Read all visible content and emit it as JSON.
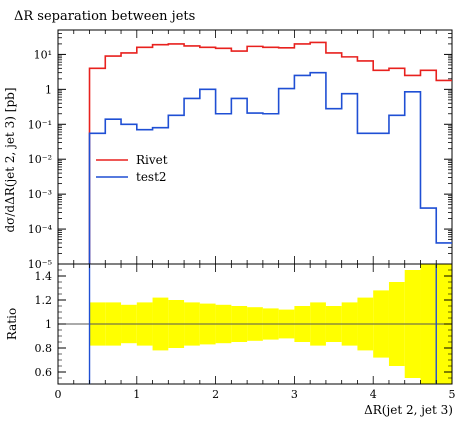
{
  "chart_data": [
    {
      "type": "line",
      "title": "ΔR separation between jets",
      "xlabel": "",
      "ylabel": "dσ/dΔR(jet 2, jet 3) [pb]",
      "yscale": "log",
      "xlim": [
        0,
        5
      ],
      "ylim": [
        1e-05,
        50
      ],
      "y_tick_labels": [
        "10⁻⁵",
        "10⁻⁴",
        "10⁻³",
        "10⁻²",
        "10⁻¹",
        "1",
        "10¹"
      ],
      "x_edges": [
        0.4,
        0.6,
        0.8,
        1.0,
        1.2,
        1.4,
        1.6,
        1.8,
        2.0,
        2.2,
        2.4,
        2.6,
        2.8,
        3.0,
        3.2,
        3.4,
        3.6,
        3.8,
        4.0,
        4.2,
        4.4,
        4.6,
        4.8,
        5.0
      ],
      "series": [
        {
          "name": "Rivet",
          "color": "#e8211e",
          "values": [
            4.0,
            9.0,
            11.0,
            16.0,
            19.0,
            20.0,
            17.5,
            16.0,
            15.0,
            12.5,
            17.0,
            16.0,
            15.5,
            20.0,
            22.0,
            11.0,
            8.5,
            6.5,
            3.5,
            4.0,
            2.5,
            3.5,
            1.8
          ]
        },
        {
          "name": "test2",
          "color": "#1f4fd4",
          "values": [
            0.055,
            0.14,
            0.1,
            0.07,
            0.08,
            0.18,
            0.55,
            1.0,
            0.2,
            0.55,
            0.21,
            0.2,
            1.05,
            2.5,
            3.0,
            0.28,
            0.75,
            0.055,
            0.055,
            0.18,
            0.85,
            0.0004,
            4e-05
          ]
        }
      ],
      "legend": "upper-left inside plot"
    },
    {
      "type": "line",
      "xlabel": "ΔR(jet 2, jet 3)",
      "ylabel": "Ratio",
      "xlim": [
        0,
        5
      ],
      "ylim": [
        0.5,
        1.5
      ],
      "x_tick_labels": [
        "0",
        "1",
        "2",
        "3",
        "4",
        "5"
      ],
      "y_tick_labels": [
        "0.6",
        "0.8",
        "1",
        "1.2",
        "1.4"
      ],
      "band_color": "#ffff00",
      "band_halfwidth": [
        0.18,
        0.18,
        0.16,
        0.18,
        0.22,
        0.2,
        0.18,
        0.17,
        0.16,
        0.15,
        0.14,
        0.13,
        0.12,
        0.15,
        0.18,
        0.15,
        0.18,
        0.22,
        0.28,
        0.35,
        0.45,
        0.6,
        0.6
      ],
      "series": [
        {
          "name": "Rivet",
          "color": "#e8211e",
          "values": [
            1,
            1,
            1,
            1,
            1,
            1,
            1,
            1,
            1,
            1,
            1,
            1,
            1,
            1,
            1,
            1,
            1,
            1,
            1,
            1,
            1,
            1,
            1
          ]
        }
      ]
    }
  ]
}
